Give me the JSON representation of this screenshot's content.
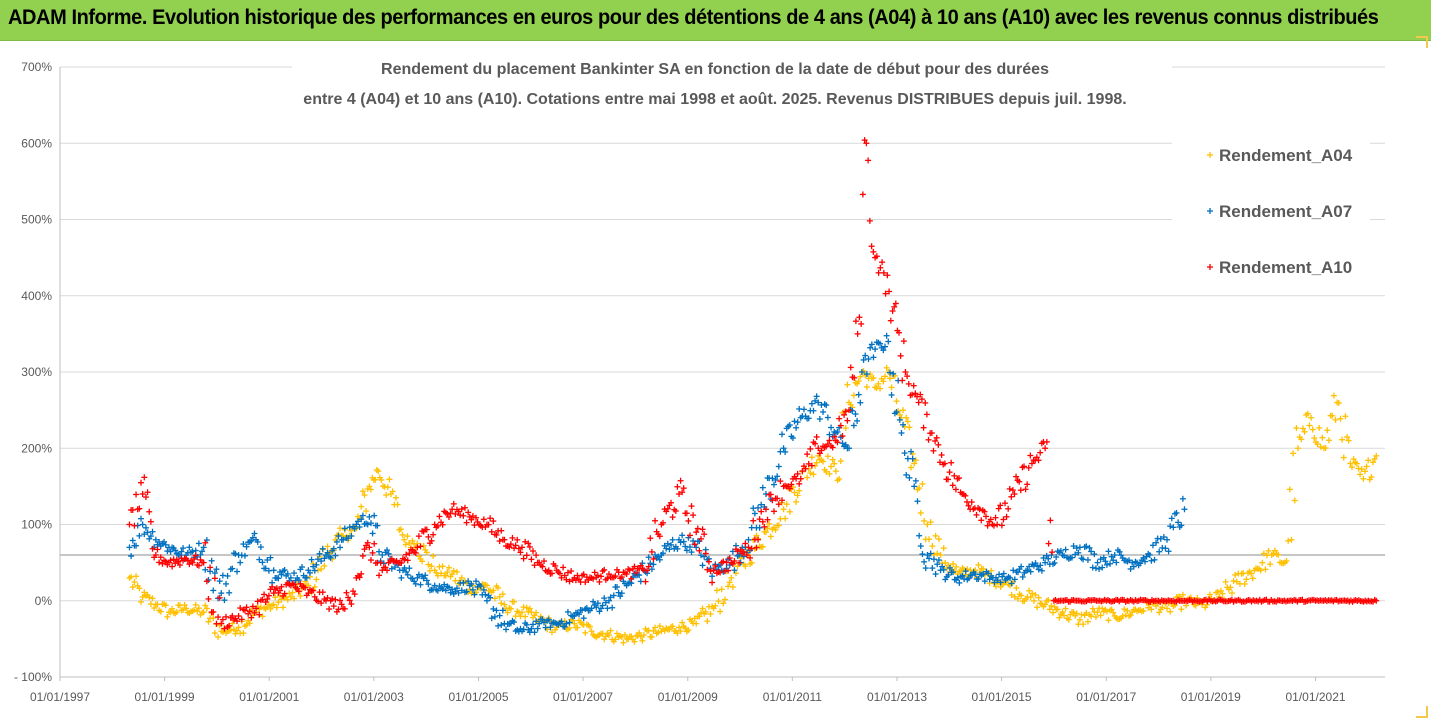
{
  "header": {
    "title": "ADAM Informe. Evolution historique des performances en euros pour des détentions de 4 ans (A04) à 10 ans (A10) avec les revenus connus distribués"
  },
  "chart_data": {
    "type": "scatter",
    "title_lines": [
      "Rendement du placement Bankinter SA en fonction de la date de début pour des durées",
      "entre 4 (A04) et 10 ans (A10). Cotations entre mai 1998 et août. 2025. Revenus DISTRIBUES depuis juil. 1998."
    ],
    "xlabel": "",
    "ylabel": "",
    "x_domain": [
      "1997-01-01",
      "2022-05-01"
    ],
    "x_ticks": [
      "01/01/1997",
      "01/01/1999",
      "01/01/2001",
      "01/01/2003",
      "01/01/2005",
      "01/01/2007",
      "01/01/2009",
      "01/01/2011",
      "01/01/2013",
      "01/01/2015",
      "01/01/2017",
      "01/01/2019",
      "01/01/2021"
    ],
    "ylim": [
      -100,
      700
    ],
    "y_ticks": [
      -100,
      0,
      100,
      200,
      300,
      400,
      500,
      600,
      700
    ],
    "y_tick_labels": [
      "- 100%",
      "0%",
      "100%",
      "200%",
      "300%",
      "400%",
      "500%",
      "600%",
      "700%"
    ],
    "grid": "horizontal",
    "reference_line": 60,
    "legend_position": "right",
    "series": [
      {
        "name": "Rendement_A04",
        "color": "#ffc000",
        "x": [
          "1998-05-01",
          "1998-08-01",
          "1998-11-01",
          "1999-02-01",
          "1999-06-01",
          "1999-10-01",
          "2000-02-01",
          "2000-06-01",
          "2000-10-01",
          "2001-02-01",
          "2001-06-01",
          "2001-10-01",
          "2002-02-01",
          "2002-06-01",
          "2002-09-01",
          "2002-12-01",
          "2003-02-01",
          "2003-05-01",
          "2003-08-01",
          "2003-11-01",
          "2004-03-01",
          "2004-07-01",
          "2004-11-01",
          "2005-03-01",
          "2005-07-01",
          "2005-11-01",
          "2006-03-01",
          "2006-07-01",
          "2006-11-01",
          "2007-03-01",
          "2007-07-01",
          "2007-11-01",
          "2008-03-01",
          "2008-07-01",
          "2008-11-01",
          "2009-03-01",
          "2009-07-01",
          "2009-11-01",
          "2010-03-01",
          "2010-07-01",
          "2010-11-01",
          "2011-03-01",
          "2011-07-01",
          "2011-11-01",
          "2012-02-01",
          "2012-05-01",
          "2012-08-01",
          "2012-11-01",
          "2013-02-01",
          "2013-05-01",
          "2013-08-01",
          "2013-11-01",
          "2014-03-01",
          "2014-07-01",
          "2014-11-01",
          "2015-03-01",
          "2015-07-01",
          "2015-11-01",
          "2016-03-01",
          "2016-07-01",
          "2016-11-01",
          "2017-03-01",
          "2017-07-01",
          "2017-11-01",
          "2018-03-01",
          "2018-07-01",
          "2018-11-01",
          "2019-03-01",
          "2019-07-01",
          "2019-11-01",
          "2020-03-01",
          "2020-06-01",
          "2020-09-01",
          "2020-12-01",
          "2021-03-01",
          "2021-06-01",
          "2021-09-01",
          "2021-12-01",
          "2022-03-01"
        ],
        "values": [
          30,
          5,
          -5,
          -15,
          -10,
          -15,
          -40,
          -35,
          -15,
          -5,
          5,
          20,
          60,
          85,
          95,
          150,
          170,
          140,
          80,
          75,
          40,
          35,
          15,
          20,
          -5,
          -15,
          -25,
          -35,
          -30,
          -40,
          -45,
          -50,
          -45,
          -40,
          -35,
          -30,
          -10,
          30,
          60,
          90,
          120,
          160,
          190,
          170,
          260,
          300,
          280,
          300,
          240,
          180,
          100,
          60,
          35,
          40,
          30,
          20,
          5,
          -5,
          -15,
          -25,
          -15,
          -20,
          -15,
          -5,
          -10,
          0,
          -5,
          5,
          25,
          40,
          60,
          50,
          200,
          240,
          200,
          260,
          180,
          160,
          190
        ]
      },
      {
        "name": "Rendement_A07",
        "color": "#0070c0",
        "x": [
          "1998-05-01",
          "1998-08-01",
          "1998-11-01",
          "1999-02-01",
          "1999-06-01",
          "1999-10-01",
          "2000-02-01",
          "2000-06-01",
          "2000-10-01",
          "2001-02-01",
          "2001-06-01",
          "2001-10-01",
          "2002-02-01",
          "2002-06-01",
          "2002-09-01",
          "2002-12-01",
          "2003-03-01",
          "2003-07-01",
          "2003-11-01",
          "2004-03-01",
          "2004-07-01",
          "2004-11-01",
          "2005-03-01",
          "2005-07-01",
          "2005-11-01",
          "2006-03-01",
          "2006-07-01",
          "2006-11-01",
          "2007-03-01",
          "2007-07-01",
          "2007-11-01",
          "2008-03-01",
          "2008-07-01",
          "2008-11-01",
          "2009-03-01",
          "2009-07-01",
          "2009-11-01",
          "2010-03-01",
          "2010-07-01",
          "2010-11-01",
          "2011-03-01",
          "2011-07-01",
          "2011-11-01",
          "2012-02-01",
          "2012-05-01",
          "2012-08-01",
          "2012-11-01",
          "2013-02-01",
          "2013-05-01",
          "2013-08-01",
          "2013-11-01",
          "2014-03-01",
          "2014-07-01",
          "2014-11-01",
          "2015-03-01",
          "2015-07-01",
          "2015-11-01",
          "2016-03-01",
          "2016-07-01",
          "2016-11-01",
          "2017-03-01",
          "2017-07-01",
          "2017-11-01",
          "2018-03-01",
          "2018-07-01"
        ],
        "values": [
          70,
          100,
          80,
          70,
          60,
          70,
          10,
          60,
          80,
          40,
          30,
          40,
          60,
          80,
          100,
          110,
          60,
          40,
          30,
          20,
          15,
          20,
          0,
          -30,
          -40,
          -30,
          -30,
          -20,
          -10,
          0,
          20,
          40,
          60,
          80,
          70,
          40,
          50,
          80,
          140,
          200,
          240,
          260,
          220,
          200,
          300,
          330,
          340,
          220,
          150,
          60,
          40,
          30,
          35,
          30,
          30,
          40,
          50,
          60,
          70,
          50,
          60,
          50,
          60,
          80,
          120
        ]
      },
      {
        "name": "Rendement_A10",
        "color": "#ff0000",
        "x": [
          "1998-05-01",
          "1998-08-01",
          "1998-11-01",
          "1999-02-01",
          "1999-06-01",
          "1999-10-01",
          "2000-02-01",
          "2000-06-01",
          "2000-10-01",
          "2001-02-01",
          "2001-06-01",
          "2001-10-01",
          "2002-02-01",
          "2002-06-01",
          "2002-09-01",
          "2002-12-01",
          "2003-03-01",
          "2003-07-01",
          "2003-11-01",
          "2004-03-01",
          "2004-07-01",
          "2004-11-01",
          "2005-03-01",
          "2005-07-01",
          "2005-11-01",
          "2006-03-01",
          "2006-07-01",
          "2006-11-01",
          "2007-03-01",
          "2007-07-01",
          "2007-11-01",
          "2008-03-01",
          "2008-07-01",
          "2008-11-01",
          "2009-03-01",
          "2009-07-01",
          "2009-11-01",
          "2010-03-01",
          "2010-07-01",
          "2010-11-01",
          "2011-03-01",
          "2011-07-01",
          "2011-11-01",
          "2012-02-01",
          "2012-04-01",
          "2012-06-01",
          "2012-08-01",
          "2012-10-01",
          "2012-12-01",
          "2013-03-01",
          "2013-06-01",
          "2013-09-01",
          "2013-12-01",
          "2014-04-01",
          "2014-08-01",
          "2014-12-01",
          "2015-04-01",
          "2015-08-01",
          "2015-11-01",
          "2016-01-01",
          "2016-07-01",
          "2017-01-01",
          "2017-07-01",
          "2018-01-01",
          "2018-07-01",
          "2019-01-01",
          "2019-07-01",
          "2020-01-01",
          "2020-07-01",
          "2021-01-01",
          "2021-07-01",
          "2022-03-01"
        ],
        "values": [
          100,
          140,
          60,
          50,
          55,
          50,
          -30,
          -20,
          -10,
          10,
          20,
          10,
          0,
          -10,
          30,
          70,
          40,
          50,
          70,
          100,
          120,
          110,
          100,
          80,
          70,
          50,
          40,
          30,
          30,
          35,
          35,
          40,
          100,
          140,
          90,
          40,
          50,
          70,
          120,
          150,
          160,
          200,
          210,
          250,
          350,
          600,
          450,
          430,
          380,
          300,
          260,
          220,
          180,
          140,
          120,
          100,
          140,
          180,
          200,
          0,
          0,
          0,
          0,
          0,
          0,
          0,
          0,
          0,
          0,
          0,
          0,
          0
        ]
      }
    ]
  }
}
